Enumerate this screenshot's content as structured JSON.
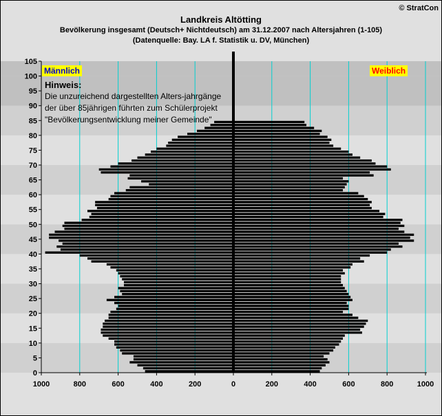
{
  "header": {
    "title": "Landkreis Altötting",
    "subtitle": "Bevölkerung  insgesamt (Deutsch+ Nichtdeutsch) am 31.12.2007 nach Altersjahren (1-105)",
    "source": "(Datenquelle: Bay. LA f. Statistik u. DV, München)",
    "copyright": "© StratCon"
  },
  "note": {
    "title": "Hinweis:",
    "text": "Die unzureichend dargestellten Alters-jahrgänge der über 85jährigen führten zum Schülerprojekt \"Bevölkerungsentwicklung meiner Gemeinde\""
  },
  "colors": {
    "bars": "#000000",
    "gridlines": "#00d0d0",
    "band_dark": "#c0c0c0",
    "band_mid": "#d0d0d0",
    "band_light": "#e0e0e0",
    "label_bg": "#ffff00",
    "male_label": "#0000cc",
    "female_label": "#ff0000"
  },
  "chart_data": {
    "type": "bar",
    "orientation": "horizontal",
    "xlim": [
      -1000,
      1000
    ],
    "ylim": [
      0,
      105
    ],
    "x_ticks": [
      1000,
      800,
      600,
      400,
      200,
      0,
      200,
      400,
      600,
      800,
      1000
    ],
    "y_ticks": [
      0,
      5,
      10,
      15,
      20,
      25,
      30,
      35,
      40,
      45,
      50,
      55,
      60,
      65,
      70,
      75,
      80,
      85,
      90,
      95,
      100,
      105
    ],
    "series": [
      {
        "name": "Männlich",
        "ages": [
          0,
          1,
          2,
          3,
          4,
          5,
          6,
          7,
          8,
          9,
          10,
          11,
          12,
          13,
          14,
          15,
          16,
          17,
          18,
          19,
          20,
          21,
          22,
          23,
          24,
          25,
          26,
          27,
          28,
          29,
          30,
          31,
          32,
          33,
          34,
          35,
          36,
          37,
          38,
          39,
          40,
          41,
          42,
          43,
          44,
          45,
          46,
          47,
          48,
          49,
          50,
          51,
          52,
          53,
          54,
          55,
          56,
          57,
          58,
          59,
          60,
          61,
          62,
          63,
          64,
          65,
          66,
          67,
          68,
          69,
          70,
          71,
          72,
          73,
          74,
          75,
          76,
          77,
          78,
          79,
          80,
          81,
          82,
          83,
          84
        ],
        "values": [
          460,
          470,
          500,
          540,
          520,
          520,
          580,
          590,
          610,
          620,
          620,
          650,
          680,
          690,
          690,
          680,
          680,
          670,
          650,
          650,
          640,
          610,
          600,
          620,
          660,
          620,
          580,
          590,
          600,
          570,
          570,
          580,
          590,
          600,
          610,
          640,
          660,
          740,
          760,
          800,
          980,
          900,
          920,
          890,
          910,
          960,
          960,
          930,
          880,
          890,
          880,
          790,
          750,
          740,
          760,
          710,
          720,
          720,
          650,
          640,
          620,
          560,
          540,
          440,
          480,
          550,
          540,
          690,
          700,
          640,
          600,
          530,
          500,
          460,
          430,
          400,
          350,
          340,
          320,
          290,
          240,
          190,
          150,
          120,
          100
        ]
      },
      {
        "name": "Weiblich",
        "ages": [
          0,
          1,
          2,
          3,
          4,
          5,
          6,
          7,
          8,
          9,
          10,
          11,
          12,
          13,
          14,
          15,
          16,
          17,
          18,
          19,
          20,
          21,
          22,
          23,
          24,
          25,
          26,
          27,
          28,
          29,
          30,
          31,
          32,
          33,
          34,
          35,
          36,
          37,
          38,
          39,
          40,
          41,
          42,
          43,
          44,
          45,
          46,
          47,
          48,
          49,
          50,
          51,
          52,
          53,
          54,
          55,
          56,
          57,
          58,
          59,
          60,
          61,
          62,
          63,
          64,
          65,
          66,
          67,
          68,
          69,
          70,
          71,
          72,
          73,
          74,
          75,
          76,
          77,
          78,
          79,
          80,
          81,
          82,
          83,
          84
        ],
        "values": [
          450,
          460,
          480,
          500,
          490,
          470,
          500,
          520,
          530,
          550,
          560,
          570,
          580,
          670,
          660,
          680,
          690,
          700,
          650,
          620,
          570,
          600,
          600,
          590,
          620,
          610,
          600,
          590,
          580,
          570,
          560,
          560,
          560,
          580,
          570,
          610,
          620,
          680,
          660,
          710,
          800,
          820,
          880,
          860,
          940,
          920,
          940,
          890,
          860,
          890,
          870,
          880,
          780,
          790,
          760,
          720,
          710,
          720,
          700,
          680,
          650,
          570,
          580,
          590,
          600,
          570,
          730,
          710,
          820,
          800,
          740,
          720,
          660,
          620,
          600,
          560,
          520,
          500,
          510,
          490,
          450,
          460,
          420,
          380,
          370
        ]
      }
    ]
  }
}
